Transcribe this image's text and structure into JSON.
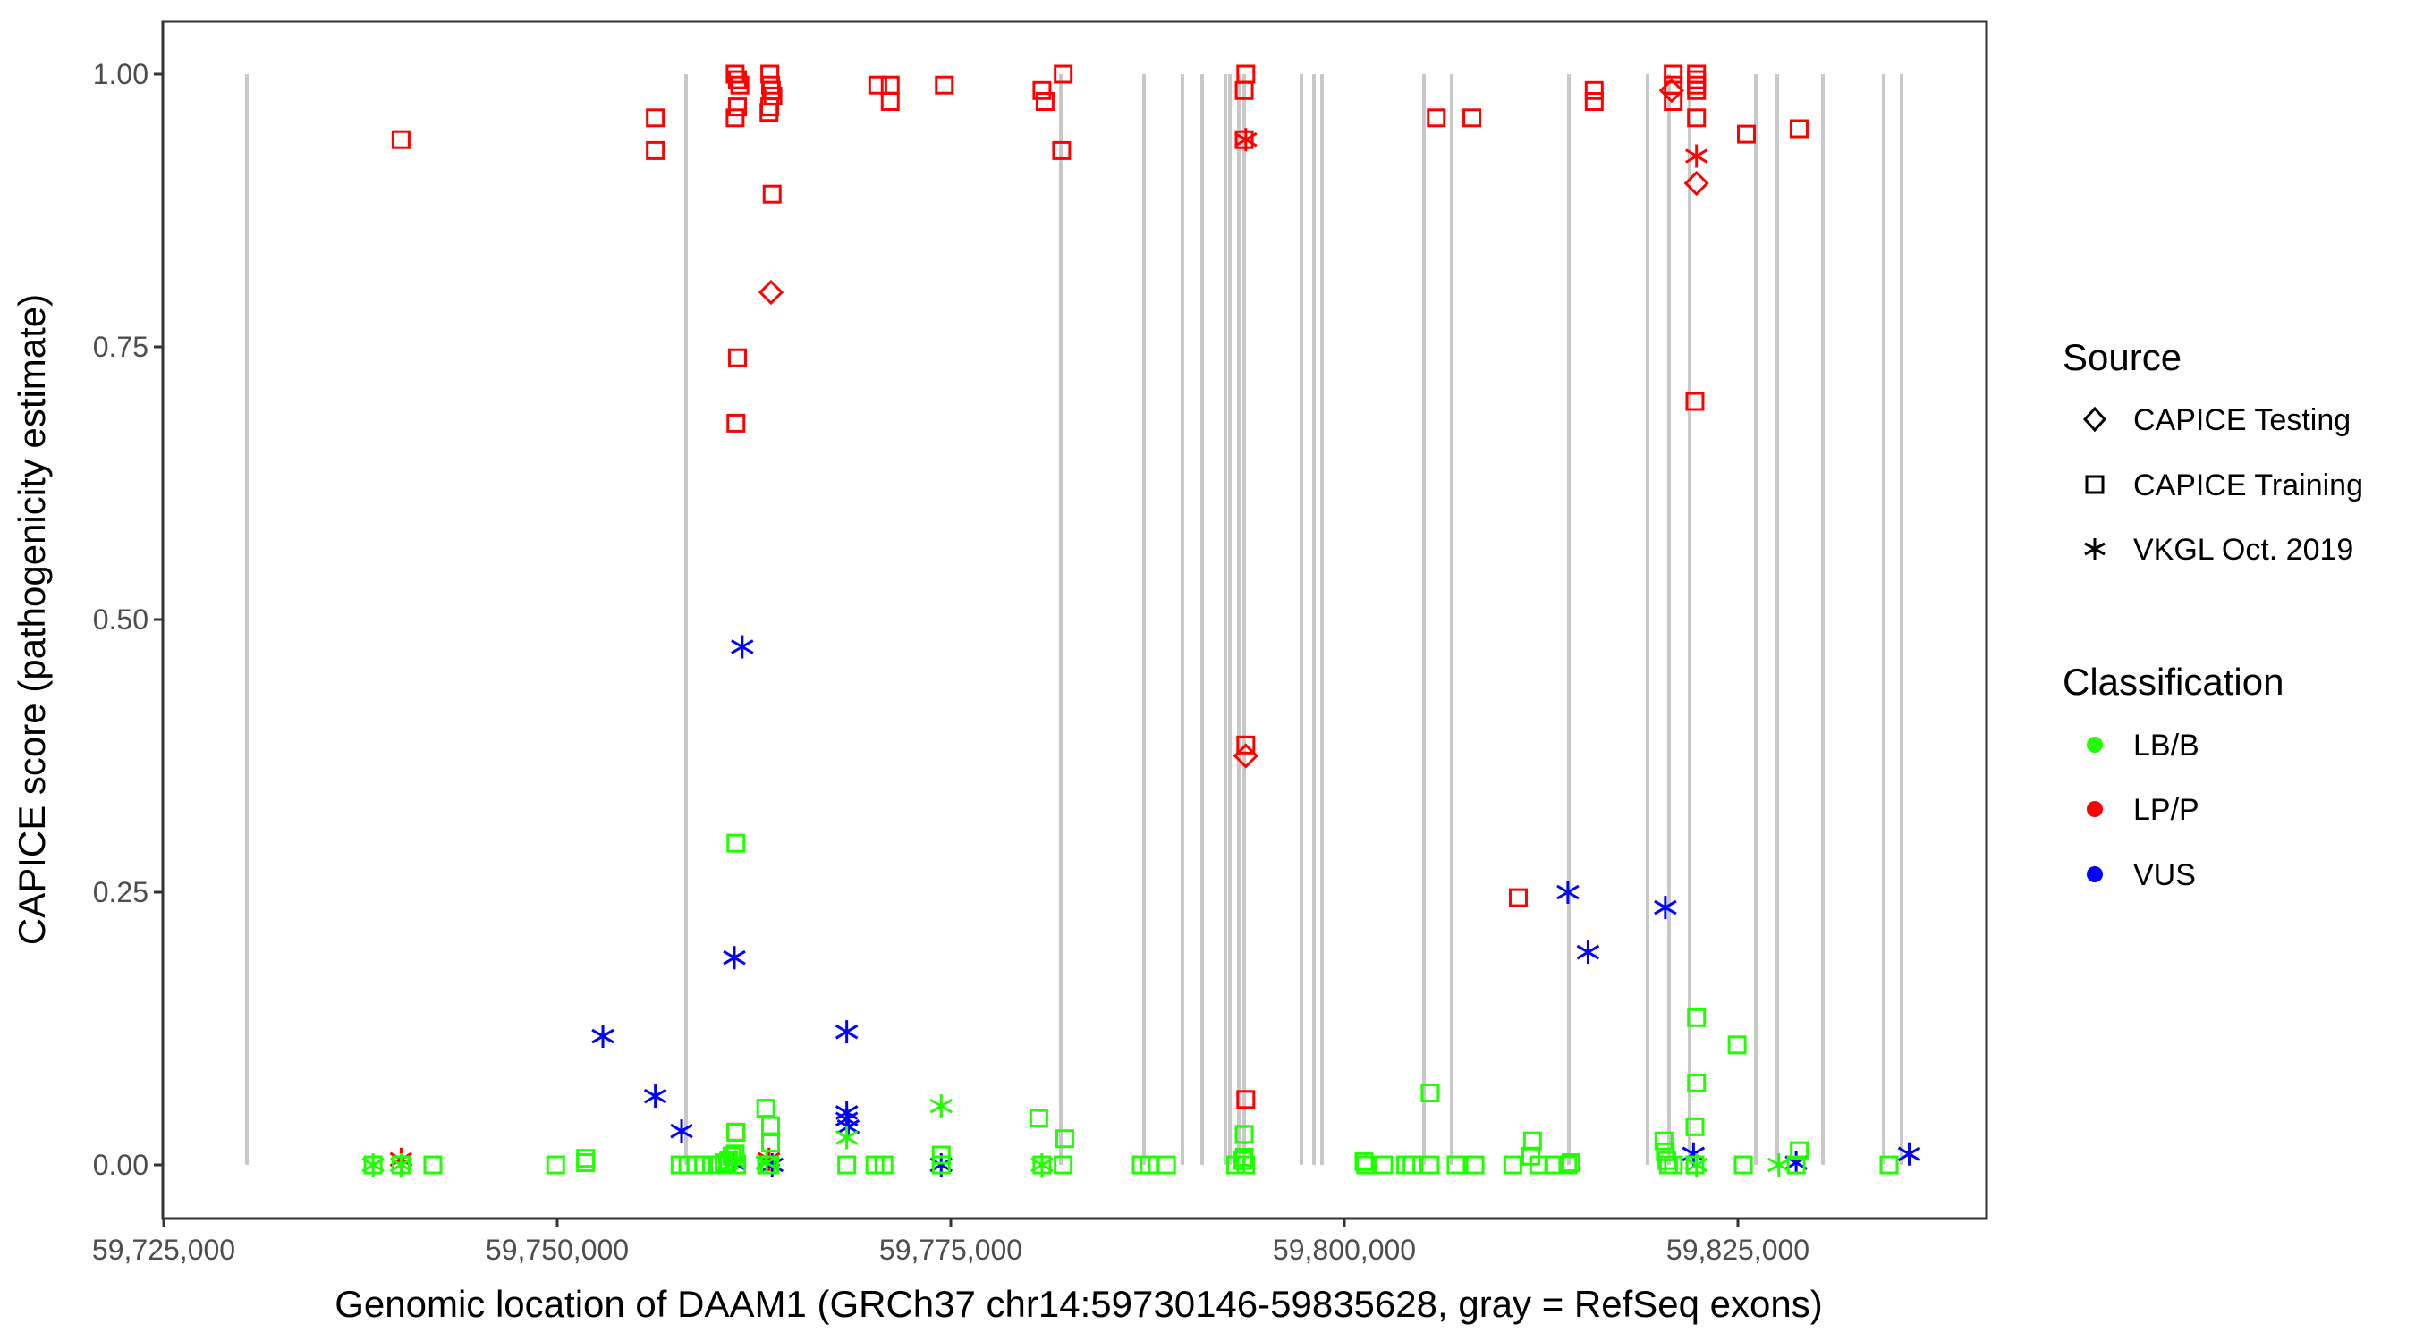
{
  "chart_data": {
    "type": "scatter",
    "title": "",
    "xlabel": "Genomic location of DAAM1 (GRCh37 chr14:59730146-59835628, gray = RefSeq exons)",
    "ylabel": "CAPICE score (pathogenicity estimate)",
    "xlim": [
      59725000,
      59840800
    ],
    "ylim": [
      -0.046,
      1.05
    ],
    "x_ticks": [
      59725000,
      59750000,
      59775000,
      59800000,
      59825000
    ],
    "x_tick_labels": [
      "59,725,000",
      "59,750,000",
      "59,775,000",
      "59,800,000",
      "59,825,000"
    ],
    "y_ticks": [
      0,
      0.25,
      0.5,
      0.75,
      1.0
    ],
    "y_tick_labels": [
      "0.00",
      "0.25",
      "0.50",
      "0.75",
      "1.00"
    ],
    "grid": false,
    "exons": [
      59730284,
      59758182,
      59781989,
      59787273,
      59789716,
      59790966,
      59792443,
      59792727,
      59793295,
      59793636,
      59797273,
      59798068,
      59798580,
      59805057,
      59806818,
      59814261,
      59819261,
      59820625,
      59821932,
      59826136,
      59827500,
      59830398,
      59834261,
      59835398
    ],
    "exon_color": "#c8c8c8",
    "legend": {
      "placement": "right",
      "source": {
        "title": "Source",
        "items": [
          {
            "label": "CAPICE Testing",
            "shape": "diamond"
          },
          {
            "label": "CAPICE Training",
            "shape": "square"
          },
          {
            "label": "VKGL Oct. 2019",
            "shape": "asterisk"
          }
        ]
      },
      "classification": {
        "title": "Classification",
        "items": [
          {
            "label": "LB/B",
            "color": "#1fff00"
          },
          {
            "label": "LP/P",
            "color": "#ff0000"
          },
          {
            "label": "VUS",
            "color": "#0000ff"
          }
        ]
      }
    },
    "series": [
      {
        "name": "LP/P CAPICE Training",
        "class": "LP/P",
        "source": "CAPICE Training",
        "points": [
          [
            59740080,
            0.94
          ],
          [
            59756230,
            0.96
          ],
          [
            59756230,
            0.93
          ],
          [
            59761300,
            1.0
          ],
          [
            59761450,
            0.995
          ],
          [
            59761600,
            0.99
          ],
          [
            59761450,
            0.97
          ],
          [
            59761300,
            0.96
          ],
          [
            59761450,
            0.74
          ],
          [
            59761350,
            0.68
          ],
          [
            59763500,
            1.0
          ],
          [
            59763550,
            0.99
          ],
          [
            59763600,
            0.985
          ],
          [
            59763700,
            0.98
          ],
          [
            59763500,
            0.97
          ],
          [
            59763450,
            0.965
          ],
          [
            59763650,
            0.89
          ],
          [
            59770360,
            0.99
          ],
          [
            59771150,
            0.99
          ],
          [
            59771150,
            0.975
          ],
          [
            59774590,
            0.99
          ],
          [
            59780790,
            0.985
          ],
          [
            59780990,
            0.975
          ],
          [
            59782140,
            1.0
          ],
          [
            59782040,
            0.93
          ],
          [
            59793740,
            1.0
          ],
          [
            59793640,
            0.985
          ],
          [
            59793740,
            0.385
          ],
          [
            59793740,
            0.06
          ],
          [
            59793640,
            0.94
          ],
          [
            59805840,
            0.96
          ],
          [
            59808100,
            0.96
          ],
          [
            59811050,
            0.245
          ],
          [
            59815870,
            0.985
          ],
          [
            59815870,
            0.975
          ],
          [
            59820890,
            1.0
          ],
          [
            59820890,
            0.99
          ],
          [
            59820890,
            0.975
          ],
          [
            59822370,
            1.0
          ],
          [
            59822370,
            0.995
          ],
          [
            59822370,
            0.99
          ],
          [
            59822370,
            0.985
          ],
          [
            59822370,
            0.96
          ],
          [
            59822270,
            0.7
          ],
          [
            59825540,
            0.945
          ],
          [
            59828890,
            0.95
          ],
          [
            59761350,
            0.03
          ]
        ]
      },
      {
        "name": "LP/P CAPICE Testing",
        "class": "LP/P",
        "source": "CAPICE Testing",
        "points": [
          [
            59763580,
            0.8
          ],
          [
            59793740,
            0.375
          ],
          [
            59820790,
            0.985
          ],
          [
            59822370,
            0.9
          ]
        ]
      },
      {
        "name": "LP/P VKGL",
        "class": "LP/P",
        "source": "VKGL Oct. 2019",
        "points": [
          [
            59740080,
            0.005
          ],
          [
            59763450,
            0.005
          ],
          [
            59793740,
            0.94
          ],
          [
            59822370,
            0.925
          ]
        ]
      },
      {
        "name": "VUS VKGL",
        "class": "VUS",
        "source": "VKGL Oct. 2019",
        "points": [
          [
            59761750,
            0.475
          ],
          [
            59761250,
            0.19
          ],
          [
            59752900,
            0.118
          ],
          [
            59756230,
            0.063
          ],
          [
            59757900,
            0.031
          ],
          [
            59768390,
            0.122
          ],
          [
            59768390,
            0.048
          ],
          [
            59768390,
            0.042
          ],
          [
            59768490,
            0.035
          ],
          [
            59774390,
            0.0
          ],
          [
            59763650,
            0.0
          ],
          [
            59761200,
            0.002
          ],
          [
            59814200,
            0.25
          ],
          [
            59815480,
            0.195
          ],
          [
            59820390,
            0.236
          ],
          [
            59822180,
            0.01
          ],
          [
            59828700,
            0.002
          ],
          [
            59835880,
            0.01
          ]
        ]
      },
      {
        "name": "LB/B VKGL",
        "class": "LB/B",
        "source": "VKGL Oct. 2019",
        "points": [
          [
            59738300,
            0.0
          ],
          [
            59740080,
            0.0
          ],
          [
            59761300,
            0.003
          ],
          [
            59763300,
            0.002
          ],
          [
            59768390,
            0.025
          ],
          [
            59774390,
            0.054
          ],
          [
            59780790,
            0.0
          ],
          [
            59822370,
            0.0
          ],
          [
            59827600,
            0.0
          ]
        ]
      },
      {
        "name": "LB/B CAPICE Training",
        "class": "LB/B",
        "source": "CAPICE Training",
        "points": [
          [
            59738300,
            0.0
          ],
          [
            59740080,
            0.0
          ],
          [
            59742100,
            0.0
          ],
          [
            59749900,
            0.0
          ],
          [
            59751800,
            0.002
          ],
          [
            59751800,
            0.006
          ],
          [
            59757800,
            0.0
          ],
          [
            59758300,
            0.0
          ],
          [
            59758800,
            0.0
          ],
          [
            59759300,
            0.0
          ],
          [
            59759800,
            0.0
          ],
          [
            59760200,
            0.0
          ],
          [
            59760600,
            0.002
          ],
          [
            59760900,
            0.004
          ],
          [
            59761100,
            0.008
          ],
          [
            59761300,
            0.01
          ],
          [
            59761400,
            0.0
          ],
          [
            59761350,
            0.295
          ],
          [
            59761350,
            0.03
          ],
          [
            59763250,
            0.052
          ],
          [
            59763550,
            0.036
          ],
          [
            59763550,
            0.02
          ],
          [
            59763500,
            0.0
          ],
          [
            59763300,
            0.0
          ],
          [
            59768390,
            0.0
          ],
          [
            59770180,
            0.0
          ],
          [
            59770750,
            0.0
          ],
          [
            59774390,
            0.009
          ],
          [
            59774390,
            0.0
          ],
          [
            59780590,
            0.043
          ],
          [
            59780790,
            0.0
          ],
          [
            59782240,
            0.024
          ],
          [
            59782140,
            0.0
          ],
          [
            59787100,
            0.0
          ],
          [
            59787600,
            0.0
          ],
          [
            59788700,
            0.0
          ],
          [
            59793100,
            0.0
          ],
          [
            59793640,
            0.028
          ],
          [
            59793640,
            0.007
          ],
          [
            59793740,
            0.0
          ],
          [
            59793540,
            0.004
          ],
          [
            59801250,
            0.003
          ],
          [
            59801350,
            0.0
          ],
          [
            59802500,
            0.0
          ],
          [
            59803900,
            0.0
          ],
          [
            59804300,
            0.0
          ],
          [
            59805450,
            0.066
          ],
          [
            59805450,
            0.0
          ],
          [
            59807100,
            0.0
          ],
          [
            59808300,
            0.0
          ],
          [
            59810700,
            0.0
          ],
          [
            59811950,
            0.022
          ],
          [
            59811850,
            0.008
          ],
          [
            59812350,
            0.0
          ],
          [
            59813300,
            0.0
          ],
          [
            59814200,
            0.0
          ],
          [
            59814400,
            0.002
          ],
          [
            59820300,
            0.022
          ],
          [
            59820390,
            0.012
          ],
          [
            59820490,
            0.004
          ],
          [
            59820590,
            0.0
          ],
          [
            59820900,
            0.0
          ],
          [
            59822370,
            0.135
          ],
          [
            59822370,
            0.075
          ],
          [
            59822270,
            0.035
          ],
          [
            59822270,
            0.0
          ],
          [
            59824950,
            0.11
          ],
          [
            59825340,
            0.0
          ],
          [
            59828900,
            0.013
          ],
          [
            59828700,
            0.0
          ],
          [
            59834600,
            0.0
          ]
        ]
      }
    ]
  }
}
